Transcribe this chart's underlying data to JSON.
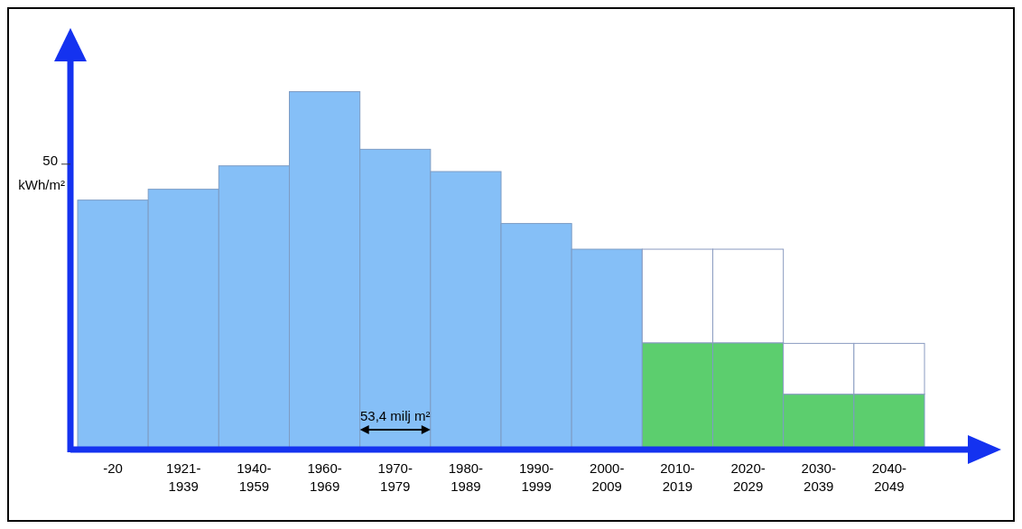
{
  "chart_data": {
    "type": "bar",
    "stacked": true,
    "ylabel": "kWh/m²",
    "categories": [
      "-20",
      "1921-1939",
      "1940-1959",
      "1960-1969",
      "1970-1979",
      "1980-1989",
      "1990-1999",
      "2000-2009",
      "2010-2019",
      "2020-2029",
      "2030-2039",
      "2040-2049"
    ],
    "series": [
      {
        "colors": [
          "#85bff7",
          "#85bff7",
          "#85bff7",
          "#85bff7",
          "#85bff7",
          "#85bff7",
          "#85bff7",
          "#85bff7",
          "#5cce6e",
          "#5cce6e",
          "#5cce6e",
          "#5cce6e"
        ],
        "values": [
          43.7,
          45.6,
          49.7,
          62.7,
          52.6,
          48.7,
          39.6,
          35.1,
          18.7,
          18.7,
          9.7,
          9.7
        ]
      },
      {
        "color": "#ffffff",
        "values": [
          null,
          null,
          null,
          null,
          null,
          null,
          null,
          null,
          16.4,
          16.4,
          8.9,
          8.9
        ]
      }
    ],
    "ylim": [
      0,
      68
    ],
    "yticks": [
      50
    ],
    "annotations": [
      "53,4 milj m²"
    ]
  }
}
